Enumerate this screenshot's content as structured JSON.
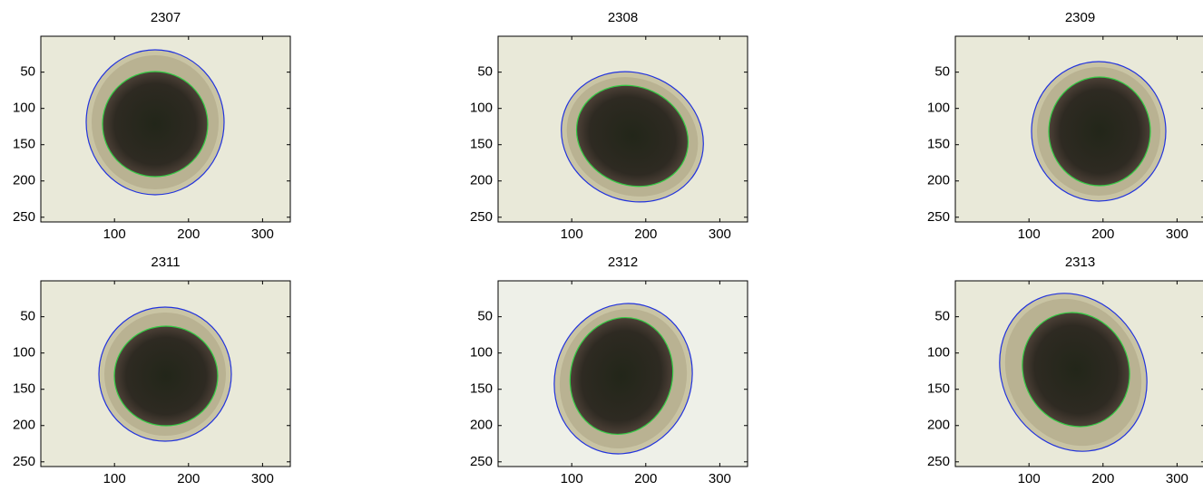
{
  "chart_data": [
    {
      "type": "image",
      "title": "2307",
      "xlim": [
        0.5,
        337.5
      ],
      "ylim": [
        0.5,
        256.5
      ],
      "xticks": [
        100,
        200,
        300
      ],
      "yticks": [
        50,
        100,
        150,
        200,
        250
      ]
    },
    {
      "type": "image",
      "title": "2308",
      "xlim": [
        0.5,
        337.5
      ],
      "ylim": [
        0.5,
        256.5
      ],
      "xticks": [
        100,
        200,
        300
      ],
      "yticks": [
        50,
        100,
        150,
        200,
        250
      ]
    },
    {
      "type": "image",
      "title": "2309",
      "xlim": [
        0.5,
        337.5
      ],
      "ylim": [
        0.5,
        256.5
      ],
      "xticks": [
        100,
        200,
        300
      ],
      "yticks": [
        50,
        100,
        150,
        200,
        250
      ]
    },
    {
      "type": "image",
      "title": "2311",
      "xlim": [
        0.5,
        337.5
      ],
      "ylim": [
        0.5,
        256.5
      ],
      "xticks": [
        100,
        200,
        300
      ],
      "yticks": [
        50,
        100,
        150,
        200,
        250
      ]
    },
    {
      "type": "image",
      "title": "2312",
      "xlim": [
        0.5,
        337.5
      ],
      "ylim": [
        0.5,
        256.5
      ],
      "xticks": [
        100,
        200,
        300
      ],
      "yticks": [
        50,
        100,
        150,
        200,
        250
      ]
    },
    {
      "type": "image",
      "title": "2313",
      "xlim": [
        0.5,
        337.5
      ],
      "ylim": [
        0.5,
        256.5
      ],
      "xticks": [
        100,
        200,
        300
      ],
      "yticks": [
        50,
        100,
        150,
        200,
        250
      ]
    }
  ]
}
